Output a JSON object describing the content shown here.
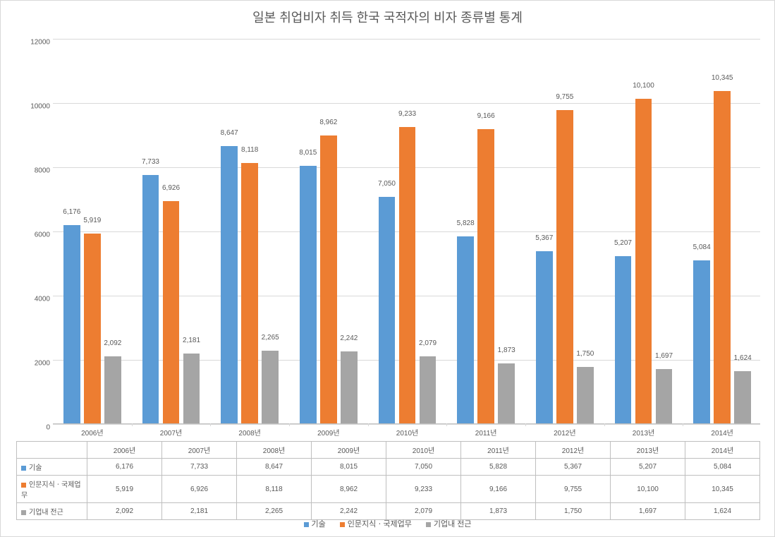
{
  "title": "일본 취업비자 취득 한국 국적자의 비자 종류별 통계",
  "chart": {
    "type": "bar",
    "ylim": [
      0,
      12000
    ],
    "ytick_step": 2000,
    "yticks": [
      0,
      2000,
      4000,
      6000,
      8000,
      10000,
      12000
    ],
    "categories": [
      "2006년",
      "2007년",
      "2008년",
      "2009년",
      "2010년",
      "2011년",
      "2012년",
      "2013년",
      "2014년"
    ],
    "series": [
      {
        "name": "기술",
        "color": "#5b9bd5",
        "data": [
          6176,
          7733,
          8647,
          8015,
          7050,
          5828,
          5367,
          5207,
          5084
        ]
      },
      {
        "name": "인문지식ㆍ국제업무",
        "color": "#ed7d31",
        "data": [
          5919,
          6926,
          8118,
          8962,
          9233,
          9166,
          9755,
          10100,
          10345
        ]
      },
      {
        "name": "기업내 전근",
        "color": "#a5a5a5",
        "data": [
          2092,
          2181,
          2265,
          2242,
          2079,
          1873,
          1750,
          1697,
          1624
        ]
      }
    ],
    "background_color": "#ffffff",
    "grid_color": "#d9d9d9",
    "axis_color": "#bfbfbf",
    "title_fontsize": 18,
    "label_fontsize": 10,
    "bar_gap_ratio": 0.18,
    "group_gap_ratio": 0.22
  },
  "data_labels_formatted": {
    "series0": [
      "6,176",
      "7,733",
      "8,647",
      "8,015",
      "7,050",
      "5,828",
      "5,367",
      "5,207",
      "5,084"
    ],
    "series1": [
      "5,919",
      "6,926",
      "8,118",
      "8,962",
      "9,233",
      "9,166",
      "9,755",
      "10,100",
      "10,345"
    ],
    "series2": [
      "2,092",
      "2,181",
      "2,265",
      "2,242",
      "2,079",
      "1,873",
      "1,750",
      "1,697",
      "1,624"
    ]
  },
  "table": {
    "header": [
      "",
      "2006년",
      "2007년",
      "2008년",
      "2009년",
      "2010년",
      "2011년",
      "2012년",
      "2013년",
      "2014년"
    ],
    "rows": [
      {
        "swatch": "#5b9bd5",
        "label": "기술",
        "cells": [
          "6,176",
          "7,733",
          "8,647",
          "8,015",
          "7,050",
          "5,828",
          "5,367",
          "5,207",
          "5,084"
        ]
      },
      {
        "swatch": "#ed7d31",
        "label": "인문지식ㆍ국제업무",
        "cells": [
          "5,919",
          "6,926",
          "8,118",
          "8,962",
          "9,233",
          "9,166",
          "9,755",
          "10,100",
          "10,345"
        ]
      },
      {
        "swatch": "#a5a5a5",
        "label": "기업내 전근",
        "cells": [
          "2,092",
          "2,181",
          "2,265",
          "2,242",
          "2,079",
          "1,873",
          "1,750",
          "1,697",
          "1,624"
        ]
      }
    ]
  },
  "legend": [
    {
      "swatch": "#5b9bd5",
      "label": "기술"
    },
    {
      "swatch": "#ed7d31",
      "label": "인문지식ㆍ국제업무"
    },
    {
      "swatch": "#a5a5a5",
      "label": "기업내 전근"
    }
  ]
}
